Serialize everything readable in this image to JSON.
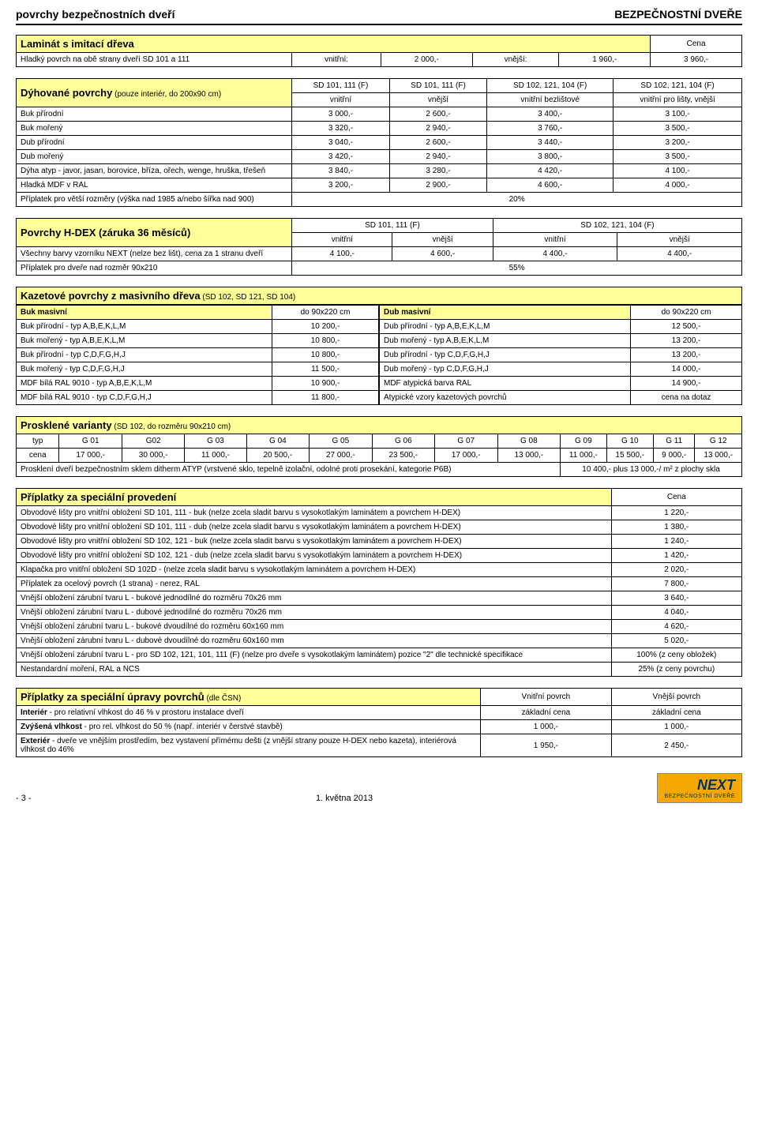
{
  "header": {
    "left": "povrchy bezpečnostních dveří",
    "right": "BEZPEČNOSTNÍ DVEŘE"
  },
  "t1": {
    "title": "Laminát s imitací dřeva",
    "cena": "Cena",
    "row": [
      "Hladký povrch na obě strany dveří SD 101 a 111",
      "vnitřní:",
      "2 000,-",
      "vnější:",
      "1 960,-",
      "3 960,-"
    ]
  },
  "t2": {
    "title": "Dýhované povrchy",
    "sub": "(pouze interiér, do 200x90 cm)",
    "h1": [
      "SD 101, 111 (F)",
      "SD 101, 111 (F)",
      "SD 102, 121, 104 (F)",
      "SD 102, 121, 104 (F)"
    ],
    "h2": [
      "vnitřní",
      "vnější",
      "vnitřní bezlištové",
      "vnitřní pro lišty, vnější"
    ],
    "rows": [
      [
        "Buk přírodní",
        "3 000,-",
        "2 600,-",
        "3 400,-",
        "3 100,-"
      ],
      [
        "Buk mořený",
        "3 320,-",
        "2 940,-",
        "3 760,-",
        "3 500,-"
      ],
      [
        "Dub přírodní",
        "3 040,-",
        "2 600,-",
        "3 440,-",
        "3 200,-"
      ],
      [
        "Dub mořený",
        "3 420,-",
        "2 940,-",
        "3 800,-",
        "3 500,-"
      ],
      [
        "Dýha atyp - javor, jasan, borovice, bříza, ořech, wenge, hruška, třešeň",
        "3 840,-",
        "3 280,-",
        "4 420,-",
        "4 100,-"
      ],
      [
        "Hladká MDF v RAL",
        "3 200,-",
        "2 900,-",
        "4 600,-",
        "4 000,-"
      ]
    ],
    "last": [
      "Příplatek pro větší rozměry (výška nad 1985 a/nebo šířka nad 900)",
      "20%"
    ]
  },
  "t3": {
    "title": "Povrchy H-DEX (záruka 36 měsíců)",
    "h1": [
      "SD 101, 111 (F)",
      "SD 102, 121, 104 (F)"
    ],
    "h2": [
      "vnitřní",
      "vnější",
      "vnitřní",
      "vnější"
    ],
    "row": [
      "Všechny barvy vzorníku NEXT (nelze bez lišt), cena za 1 stranu dveří",
      "4 100,-",
      "4 600,-",
      "4 400,-",
      "4 400,-"
    ],
    "last": [
      "Příplatek pro dveře nad rozměr 90x210",
      "55%"
    ]
  },
  "t4": {
    "title": "Kazetové povrchy z masivního dřeva",
    "sub": "(SD 102, SD 121, SD 104)",
    "left": {
      "head": [
        "Buk masivní",
        "do 90x220 cm"
      ],
      "rows": [
        [
          "Buk přírodní - typ A,B,E,K,L,M",
          "10 200,-"
        ],
        [
          "Buk mořený - typ A,B,E,K,L,M",
          "10 800,-"
        ],
        [
          "Buk přírodní - typ C,D,F,G,H,J",
          "10 800,-"
        ],
        [
          "Buk mořený - typ C,D,F,G,H,J",
          "11 500,-"
        ],
        [
          "MDF bílá RAL 9010 - typ A,B,E,K,L,M",
          "10 900,-"
        ],
        [
          "MDF bílá RAL 9010 - typ C,D,F,G,H,J",
          "11 800,-"
        ]
      ]
    },
    "right": {
      "head": [
        "Dub masivní",
        "do 90x220 cm"
      ],
      "rows": [
        [
          "Dub přírodní - typ A,B,E,K,L,M",
          "12 500,-"
        ],
        [
          "Dub mořený - typ A,B,E,K,L,M",
          "13 200,-"
        ],
        [
          "Dub přírodní - typ C,D,F,G,H,J",
          "13 200,-"
        ],
        [
          "Dub mořený - typ C,D,F,G,H,J",
          "14 000,-"
        ],
        [
          "MDF atypická barva RAL",
          "14 900,-"
        ],
        [
          "Atypické vzory kazetových povrchů",
          "cena na dotaz"
        ]
      ]
    }
  },
  "t5": {
    "title": "Prosklené varianty",
    "sub": "(SD 102, do rozměru 90x210 cm)",
    "h": [
      "typ",
      "G 01",
      "G02",
      "G 03",
      "G 04",
      "G 05",
      "G 06",
      "G 07",
      "G 08",
      "G 09",
      "G 10",
      "G 11",
      "G 12"
    ],
    "r": [
      "cena",
      "17 000,-",
      "30 000,-",
      "11 000,-",
      "20 500,-",
      "27 000,-",
      "23 500,-",
      "17 000,-",
      "13 000,-",
      "11 000,-",
      "15 500,-",
      "9 000,-",
      "13 000,-"
    ],
    "note": [
      "Prosklení dveří bezpečnostním sklem ditherm ATYP (vrstvené sklo, tepelně izolační, odolné proti prosekání, kategorie P6B)",
      "10 400,- plus 13 000,-/ m² z plochy skla"
    ]
  },
  "t6": {
    "title": "Příplatky za speciální provedení",
    "cena": "Cena",
    "rows": [
      [
        "Obvodové lišty pro vnitřní obložení SD 101, 111 - buk (nelze zcela sladit barvu s vysokotlakým laminátem a povrchem H-DEX)",
        "1 220,-"
      ],
      [
        "Obvodové lišty pro vnitřní obložení SD 101, 111 - dub (nelze zcela sladit barvu s vysokotlakým laminátem a povrchem H-DEX)",
        "1 380,-"
      ],
      [
        "Obvodové lišty pro vnitřní obložení SD 102, 121 - buk (nelze zcela sladit barvu s vysokotlakým laminátem a povrchem H-DEX)",
        "1 240,-"
      ],
      [
        "Obvodové lišty pro vnitřní obložení SD 102, 121 - dub (nelze zcela sladit barvu s vysokotlakým laminátem a povrchem H-DEX)",
        "1 420,-"
      ],
      [
        "Klapačka pro vnitřní obložení SD 102D - (nelze zcela sladit barvu s vysokotlakým laminátem a povrchem H-DEX)",
        "2 020,-"
      ],
      [
        "Příplatek za ocelový povrch (1 strana) - nerez, RAL",
        "7 800,-"
      ],
      [
        "Vnější obložení zárubní tvaru L - bukové jednodílné do rozměru 70x26 mm",
        "3 640,-"
      ],
      [
        "Vnější obložení zárubní tvaru L - dubové jednodílné do rozměru 70x26 mm",
        "4 040,-"
      ],
      [
        "Vnější obložení zárubní tvaru L - bukové dvoudílné do rozměru 60x160 mm",
        "4 620,-"
      ],
      [
        "Vnější obložení zárubní tvaru L - dubové dvoudílné do rozměru 60x160 mm",
        "5 020,-"
      ],
      [
        "Vnější obložení zárubní tvaru L - pro SD 102, 121, 101, 111 (F) (nelze pro dveře s vysokotlakým laminátem) pozice \"2\" dle technické specifikace",
        "100% (z ceny obložek)"
      ],
      [
        "Nestandardní moření, RAL a NCS",
        "25% (z ceny povrchu)"
      ]
    ]
  },
  "t7": {
    "title": "Příplatky za speciální úpravy povrchů",
    "sub": "(dle ČSN)",
    "h": [
      "Vnitřní povrch",
      "Vnější povrch"
    ],
    "rows": [
      [
        "Interiér - pro relativní vlhkost do 46 % v prostoru instalace dveří",
        "základní cena",
        "základní cena"
      ],
      [
        "Zvýšená vlhkost - pro rel. vlhkost do 50 % (např. interiér v čerstvé stavbě)",
        "1 000,-",
        "1 000,-"
      ],
      [
        "Exteriér - dveře ve vnějším prostředím, bez vystavení přímému dešti (z vnější strany pouze H-DEX nebo kazeta), interiérová vlhkost do 46%",
        "1 950,-",
        "2 450,-"
      ]
    ]
  },
  "footer": {
    "page": "- 3 -",
    "date": "1. května 2013",
    "brand": "NEXT",
    "tag": "BEZPEČNOSTNÍ DVEŘE"
  }
}
